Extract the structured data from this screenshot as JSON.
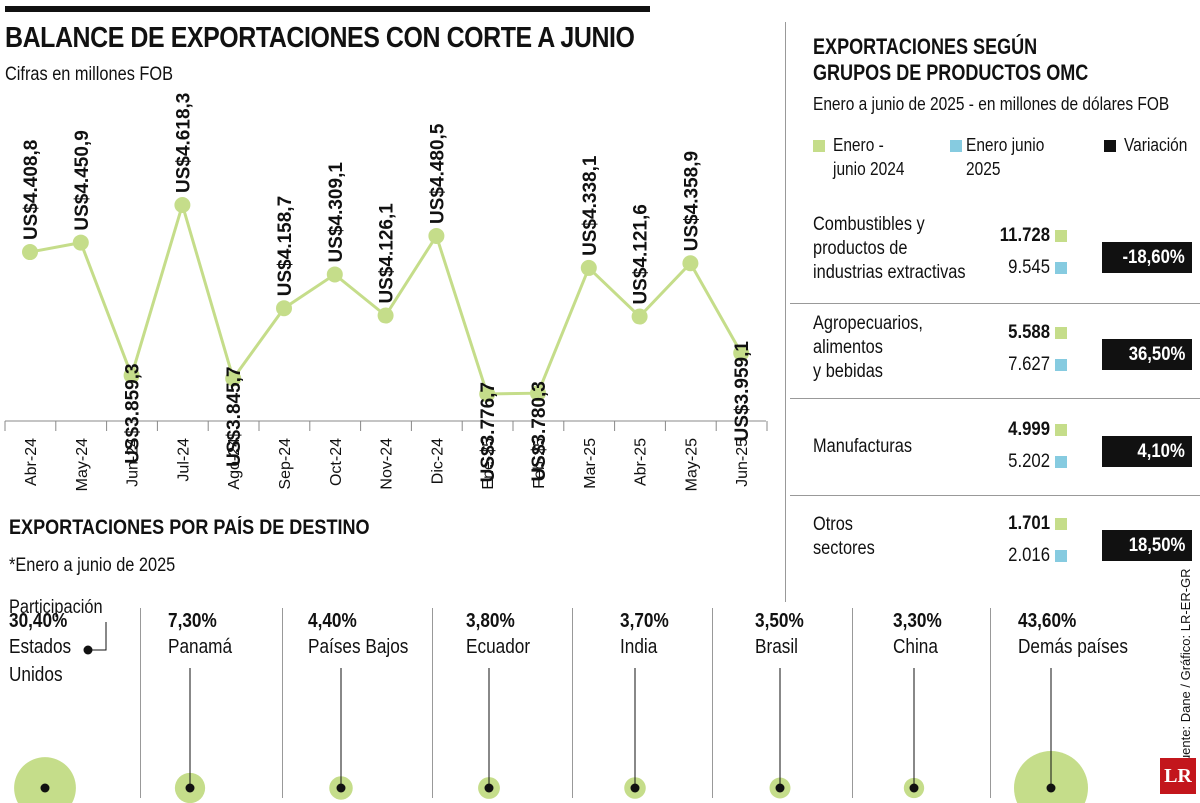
{
  "header": {
    "title": "BALANCE DE EXPORTACIONES CON CORTE A JUNIO",
    "subtitle": "Cifras en millones FOB"
  },
  "colors": {
    "green": "#c5dd8a",
    "blue": "#86cbe0",
    "black": "#111111"
  },
  "chart_data": [
    {
      "type": "line",
      "title": "BALANCE DE EXPORTACIONES CON CORTE A JUNIO",
      "subtitle": "Cifras en millones FOB",
      "categories": [
        "Abr-24",
        "May-24",
        "Jun-24",
        "Jul-24",
        "Ago-24",
        "Sep-24",
        "Oct-24",
        "Nov-24",
        "Dic-24",
        "Ene-25",
        "Feb-25",
        "Mar-25",
        "Abr-25",
        "May-25",
        "Jun-25"
      ],
      "values": [
        4408.8,
        4450.9,
        3859.3,
        4618.3,
        3845.7,
        4158.7,
        4309.1,
        4126.1,
        4480.5,
        3776.7,
        3780.3,
        4338.1,
        4121.6,
        4358.9,
        3959.1
      ],
      "data_labels": [
        "US$4.408,8",
        "US$4.450,9",
        "US$3.859,3",
        "US$4.618,3",
        "US$3.845,7",
        "US$4.158,7",
        "US$4.309,1",
        "US$4.126,1",
        "US$4.480,5",
        "US$3.776,7",
        "US$3.780,3",
        "US$4.338,1",
        "US$4.121,6",
        "US$4.358,9",
        "US$3.959,1"
      ],
      "color": "#c5dd8a"
    },
    {
      "type": "table",
      "title": "EXPORTACIONES SEGÚN GRUPOS DE PRODUCTOS OMC",
      "subtitle": "Enero a junio de 2025 - en millones de dólares FOB",
      "series": [
        {
          "name": "Enero - junio 2024",
          "values": [
            11728,
            5588,
            4999,
            1701
          ]
        },
        {
          "name": "Enero junio 2025",
          "values": [
            9545,
            7627,
            5202,
            2016
          ]
        }
      ],
      "categories": [
        "Combustibles y productos de industrias extractivas",
        "Agropecuarios, alimentos y bebidas",
        "Manufacturas",
        "Otros sectores"
      ],
      "variation": [
        "-18,60%",
        "36,50%",
        "4,10%",
        "18,50%"
      ]
    },
    {
      "type": "bubble",
      "title": "EXPORTACIONES POR PAÍS DE DESTINO",
      "subtitle": "*Enero a junio de 2025",
      "categories": [
        "Estados Unidos",
        "Panamá",
        "Países Bajos",
        "Ecuador",
        "India",
        "Brasil",
        "China",
        "Demás países"
      ],
      "values": [
        30.4,
        7.3,
        4.4,
        3.8,
        3.7,
        3.5,
        3.3,
        43.6
      ],
      "unit": "%"
    }
  ],
  "omc": {
    "title_line1": "EXPORTACIONES SEGÚN",
    "title_line2": "GRUPOS DE PRODUCTOS OMC",
    "subtitle": "Enero a junio de 2025 - en millones de dólares FOB",
    "legend": {
      "y2024_line1": "Enero -",
      "y2024_line2": "junio 2024",
      "y2025_line1": "Enero junio",
      "y2025_line2": "2025",
      "variation": "Variación"
    },
    "rows": [
      {
        "label_lines": [
          "Combustibles y",
          "productos de",
          "industrias extractivas"
        ],
        "v2024": "11.728",
        "v2025": "9.545",
        "variation": "-18,60%"
      },
      {
        "label_lines": [
          "Agropecuarios,",
          "alimentos",
          "y bebidas"
        ],
        "v2024": "5.588",
        "v2025": "7.627",
        "variation": "36,50%"
      },
      {
        "label_lines": [
          "Manufacturas"
        ],
        "v2024": "4.999",
        "v2025": "5.202",
        "variation": "4,10%"
      },
      {
        "label_lines": [
          "Otros",
          "sectores"
        ],
        "v2024": "1.701",
        "v2025": "2.016",
        "variation": "18,50%"
      }
    ]
  },
  "destinations": {
    "title": "EXPORTACIONES POR PAÍS DE DESTINO",
    "subtitle": "*Enero a junio de 2025",
    "share_label": "Participación",
    "items": [
      {
        "pct": "30,40%",
        "name_lines": [
          "Estados",
          "Unidos"
        ]
      },
      {
        "pct": "7,30%",
        "name_lines": [
          "Panamá"
        ]
      },
      {
        "pct": "4,40%",
        "name_lines": [
          "Países Bajos"
        ]
      },
      {
        "pct": "3,80%",
        "name_lines": [
          "Ecuador"
        ]
      },
      {
        "pct": "3,70%",
        "name_lines": [
          "India"
        ]
      },
      {
        "pct": "3,50%",
        "name_lines": [
          "Brasil"
        ]
      },
      {
        "pct": "3,30%",
        "name_lines": [
          "China"
        ]
      },
      {
        "pct": "43,60%",
        "name_lines": [
          "Demás países"
        ]
      }
    ]
  },
  "footer": {
    "source": "Fuente: Dane / Gráfico: LR-ER-GR",
    "logo": "LR"
  }
}
